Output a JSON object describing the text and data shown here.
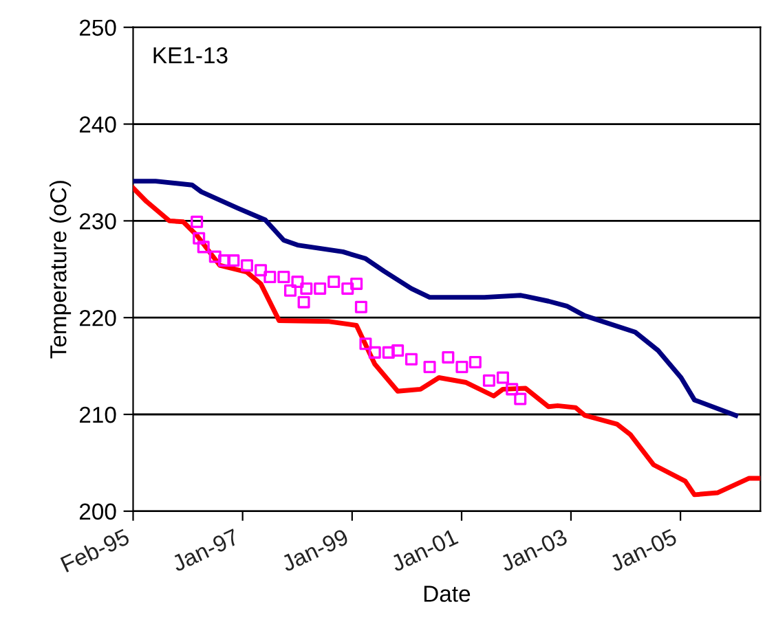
{
  "chart_data": {
    "type": "line",
    "xlabel": "Date",
    "ylabel": "Temperature (oC)",
    "annotations": [
      "KE1-13"
    ],
    "xlim": [
      "1995-02-01",
      "2006-07-15"
    ],
    "xticks": [
      {
        "value": "1995-02-01",
        "label": "Feb-95"
      },
      {
        "value": "1997-01-31",
        "label": "Jan-97"
      },
      {
        "value": "1999-01-31",
        "label": "Jan-99"
      },
      {
        "value": "2001-01-30",
        "label": "Jan-01"
      },
      {
        "value": "2003-01-29",
        "label": "Jan-03"
      },
      {
        "value": "2005-01-28",
        "label": "Jan-05"
      }
    ],
    "ylim": [
      200,
      250
    ],
    "yticks": [
      200,
      210,
      220,
      230,
      240,
      250
    ],
    "grid": "y",
    "series": [
      {
        "color": "#000080",
        "marker": "none",
        "x": [
          "1995-02",
          "1995-07",
          "1996-03",
          "1996-05",
          "1997-01",
          "1997-07",
          "1997-11",
          "1998-02",
          "1998-12",
          "1999-05",
          "1999-09",
          "2000-03",
          "2000-07",
          "2001-07",
          "2002-03",
          "2002-09",
          "2003-01",
          "2003-05",
          "2004-04",
          "2004-09",
          "2005-02",
          "2005-05",
          "2006-02"
        ],
        "values": [
          234.1,
          234.1,
          233.7,
          233.0,
          231.3,
          230.1,
          228.0,
          227.5,
          226.8,
          226.1,
          224.8,
          223.0,
          222.1,
          222.1,
          222.3,
          221.7,
          221.2,
          220.2,
          218.5,
          216.6,
          213.8,
          211.5,
          209.9
        ]
      },
      {
        "color": "#ff0000",
        "marker": "none",
        "x": [
          "1995-02",
          "1995-05",
          "1995-10",
          "1996-01",
          "1996-04",
          "1996-09",
          "1997-03",
          "1997-06",
          "1997-10",
          "1998-09",
          "1999-03",
          "1999-07",
          "1999-12",
          "2000-05",
          "2000-09",
          "2001-03",
          "2001-09",
          "2001-11",
          "2002-04",
          "2002-09",
          "2002-11",
          "2003-03",
          "2003-05",
          "2003-12",
          "2004-03",
          "2004-08",
          "2005-03",
          "2005-05",
          "2005-10",
          "2006-05",
          "2006-07"
        ],
        "values": [
          233.4,
          232.0,
          230.0,
          229.9,
          228.5,
          225.4,
          224.7,
          223.5,
          219.7,
          219.6,
          219.2,
          215.2,
          212.4,
          212.6,
          213.8,
          213.3,
          211.9,
          212.6,
          212.7,
          210.8,
          210.9,
          210.7,
          209.9,
          209.0,
          207.9,
          204.8,
          203.1,
          201.7,
          201.9,
          203.4,
          203.4
        ]
      },
      {
        "type": "scatter",
        "color": "#ff00ff",
        "marker": "square",
        "x": [
          "1996-04-01",
          "1996-04-15",
          "1996-05-15",
          "1996-08-01",
          "1996-10-01",
          "1996-12-01",
          "1997-03-01",
          "1997-06-01",
          "1997-08-01",
          "1997-11-01",
          "1997-12-15",
          "1998-02-01",
          "1998-03-15",
          "1998-04-01",
          "1998-07-01",
          "1998-10-01",
          "1999-01-01",
          "1999-03-01",
          "1999-04-01",
          "1999-05-01",
          "1999-07-01",
          "1999-10-01",
          "1999-12-01",
          "2000-03-01",
          "2000-07-01",
          "2000-11-01",
          "2001-02-01",
          "2001-05-01",
          "2001-08-01",
          "2001-11-01",
          "2002-01-01",
          "2002-02-25"
        ],
        "values": [
          229.9,
          228.2,
          227.3,
          226.3,
          225.9,
          225.9,
          225.4,
          224.9,
          224.2,
          224.2,
          222.8,
          223.7,
          221.6,
          223.0,
          223.0,
          223.7,
          223.0,
          223.5,
          221.1,
          217.3,
          216.4,
          216.4,
          216.6,
          215.7,
          214.9,
          215.9,
          214.9,
          215.4,
          213.5,
          213.8,
          212.6,
          211.6
        ]
      }
    ]
  }
}
